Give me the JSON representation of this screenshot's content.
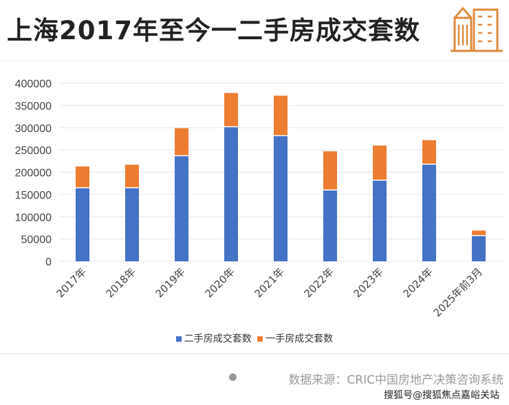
{
  "title": "上海2017年至今一二手房成交套数",
  "icon": "city-buildings-icon",
  "source": "数据来源：CRIC中国房地产决策咨询系统",
  "footer": "搜狐号@搜狐焦点嘉峪关站",
  "colors": {
    "second_hand": "#4472C4",
    "first_hand": "#ED7D31"
  },
  "chart_data": {
    "type": "bar",
    "stacked": true,
    "categories": [
      "2017年",
      "2018年",
      "2019年",
      "2020年",
      "2021年",
      "2022年",
      "2023年",
      "2024年",
      "2025年前3月"
    ],
    "series": [
      {
        "name": "二手房成交套数",
        "values": [
          164000,
          164000,
          236000,
          301000,
          281000,
          159000,
          181000,
          217000,
          56500
        ]
      },
      {
        "name": "一手房成交套数",
        "values": [
          49000,
          53000,
          63000,
          77000,
          91000,
          88000,
          79000,
          55000,
          12500
        ]
      }
    ],
    "ylim": [
      0,
      400000
    ],
    "yticks": [
      "0",
      "50000",
      "100000",
      "150000",
      "200000",
      "250000",
      "300000",
      "350000",
      "400000"
    ],
    "grid": true,
    "legend": "bottom"
  }
}
